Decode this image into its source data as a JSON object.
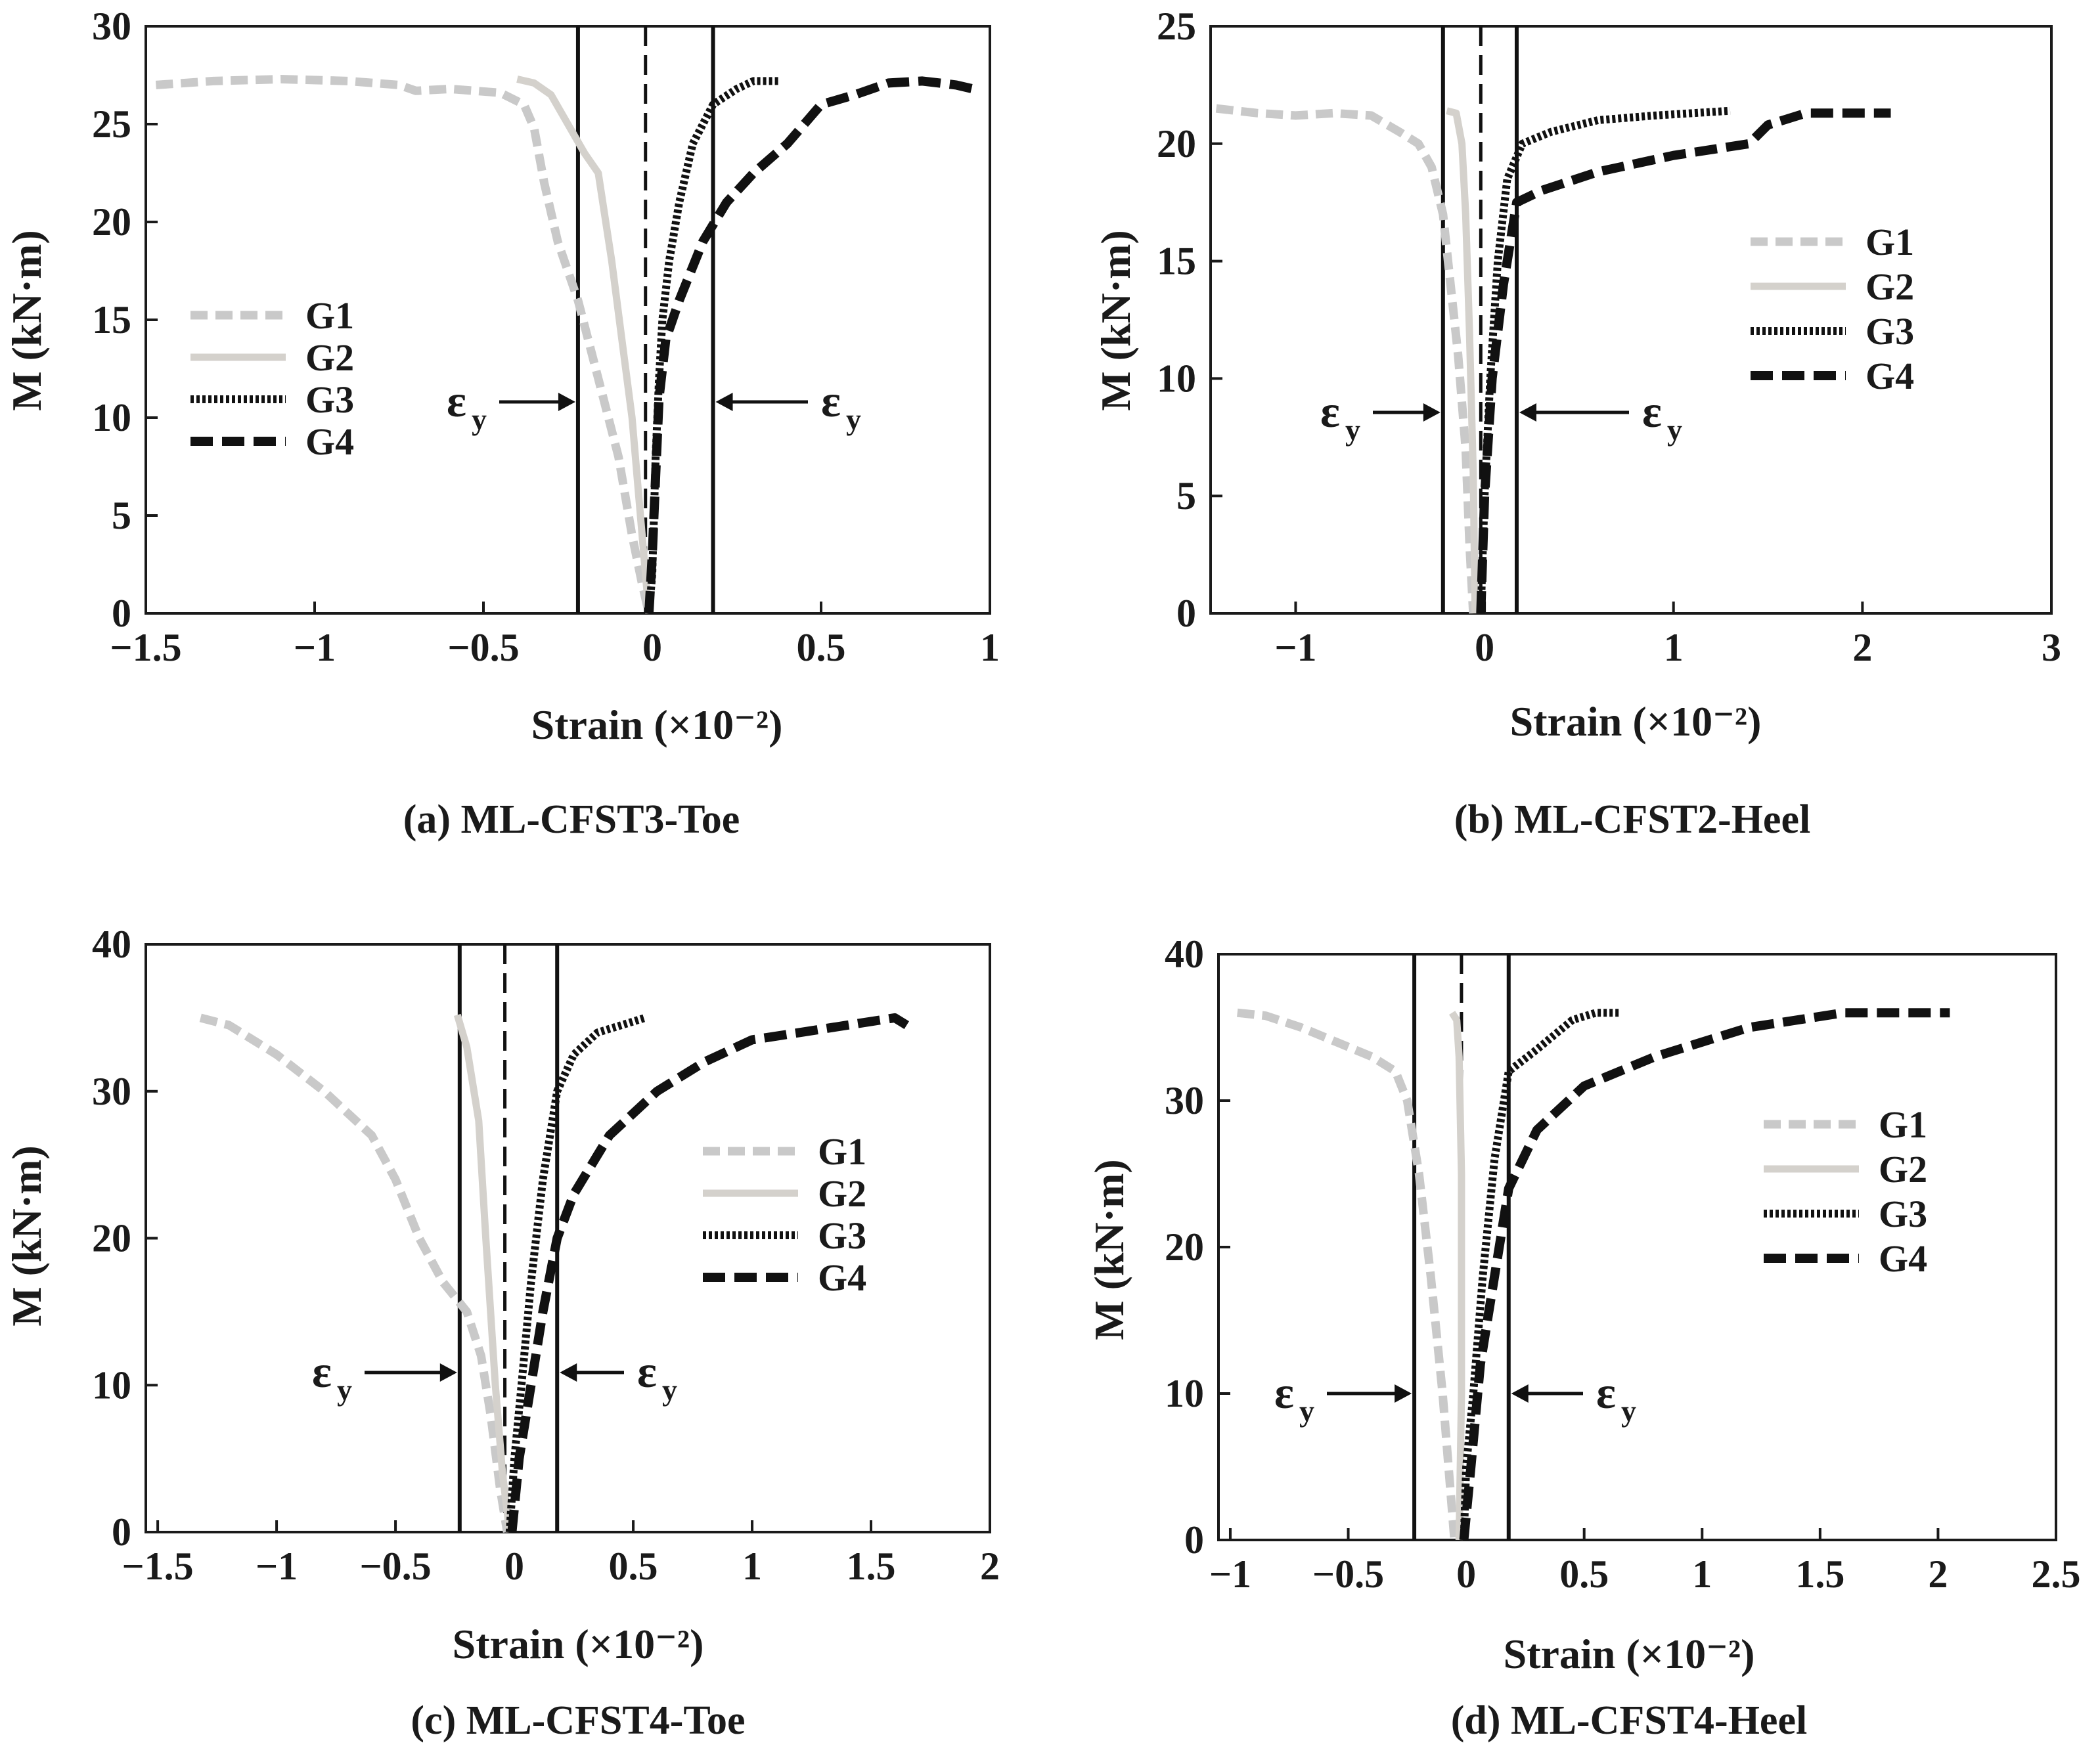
{
  "colors": {
    "G1": "#c9c9c9",
    "G2": "#d4d1cc",
    "G3": "#111111",
    "G4": "#111111",
    "axes": "#1a1a1a"
  },
  "chart_data": [
    {
      "type": "line",
      "caption": "(a) ML-CFST3-Toe",
      "xlabel": "Strain (×10⁻²)",
      "ylabel": "M (kN·m)",
      "xlim": [
        -1.5,
        1
      ],
      "ylim": [
        0,
        30
      ],
      "xticks": [
        "−1.5",
        "−1",
        "−0.5",
        "0",
        "0.5",
        "1"
      ],
      "yticks": [
        "0",
        "5",
        "10",
        "15",
        "20",
        "25",
        "30"
      ],
      "legend": {
        "position": "left",
        "entries": [
          "G1",
          "G2",
          "G3",
          "G4"
        ]
      },
      "yield_lines": {
        "solid": [
          -0.22,
          0.18
        ],
        "dashed": -0.02
      },
      "yield_label": "ε",
      "yield_sub": "y",
      "series": [
        {
          "name": "G1",
          "x": [
            -1.47,
            -1.3,
            -1.1,
            -0.9,
            -0.75,
            -0.7,
            -0.6,
            -0.45,
            -0.38,
            -0.35,
            -0.32,
            -0.28,
            -0.22,
            -0.16,
            -0.1,
            -0.06,
            -0.03,
            -0.01
          ],
          "y": [
            27,
            27.2,
            27.3,
            27.2,
            27,
            26.7,
            26.8,
            26.6,
            26,
            24.8,
            22,
            19,
            16,
            12,
            8,
            4,
            1.5,
            0
          ]
        },
        {
          "name": "G2",
          "x": [
            -0.4,
            -0.35,
            -0.3,
            -0.25,
            -0.2,
            -0.16,
            -0.12,
            -0.09,
            -0.06,
            -0.04,
            -0.02,
            -0.01
          ],
          "y": [
            27.3,
            27.1,
            26.5,
            25,
            23.5,
            22.5,
            18,
            14,
            10,
            6,
            2,
            0
          ]
        },
        {
          "name": "G3",
          "x": [
            -0.01,
            0,
            0.005,
            0.01,
            0.02,
            0.03,
            0.05,
            0.08,
            0.12,
            0.18,
            0.25,
            0.3,
            0.38
          ],
          "y": [
            0,
            2,
            5,
            8,
            12,
            15,
            18,
            21,
            24,
            26,
            26.8,
            27.2,
            27.2
          ]
        },
        {
          "name": "G4",
          "x": [
            -0.01,
            0,
            0.01,
            0.02,
            0.04,
            0.08,
            0.15,
            0.22,
            0.3,
            0.4,
            0.5,
            0.6,
            0.7,
            0.8,
            0.9,
            0.95
          ],
          "y": [
            0,
            3,
            7,
            11,
            14,
            16,
            19,
            21,
            22.5,
            24,
            26,
            26.5,
            27.1,
            27.2,
            27,
            26.8
          ]
        }
      ]
    },
    {
      "type": "line",
      "caption": "(b) ML-CFST2-Heel",
      "xlabel": "Strain (×10⁻²)",
      "ylabel": "M (kN·m)",
      "xlim": [
        -1.45,
        3
      ],
      "ylim": [
        0,
        25
      ],
      "xticks": [
        "−1",
        "0",
        "1",
        "2",
        "3"
      ],
      "yticks": [
        "0",
        "5",
        "10",
        "15",
        "20",
        "25"
      ],
      "legend": {
        "position": "right",
        "entries": [
          "G1",
          "G2",
          "G3",
          "G4"
        ]
      },
      "yield_lines": {
        "solid": [
          -0.22,
          0.17
        ],
        "dashed": -0.02
      },
      "yield_label": "ε",
      "yield_sub": "y",
      "series": [
        {
          "name": "G1",
          "x": [
            -1.42,
            -1.2,
            -1.0,
            -0.8,
            -0.6,
            -0.45,
            -0.35,
            -0.28,
            -0.22,
            -0.18,
            -0.14,
            -0.1,
            -0.08,
            -0.06
          ],
          "y": [
            21.5,
            21.3,
            21.2,
            21.3,
            21.2,
            20.5,
            20,
            19,
            17,
            14,
            11,
            7,
            3,
            0
          ]
        },
        {
          "name": "G2",
          "x": [
            -0.2,
            -0.15,
            -0.12,
            -0.1,
            -0.08,
            -0.06,
            -0.05
          ],
          "y": [
            21.4,
            21.3,
            20,
            17,
            12,
            6,
            0
          ]
        },
        {
          "name": "G3",
          "x": [
            -0.02,
            0,
            0.03,
            0.07,
            0.12,
            0.2,
            0.35,
            0.6,
            0.9,
            1.1,
            1.3
          ],
          "y": [
            0,
            5,
            10,
            15,
            18.5,
            20,
            20.5,
            21,
            21.2,
            21.3,
            21.4
          ]
        },
        {
          "name": "G4",
          "x": [
            -0.02,
            0,
            0.04,
            0.1,
            0.17,
            0.3,
            0.6,
            1.0,
            1.4,
            1.5,
            1.7,
            2.15
          ],
          "y": [
            0,
            5,
            10,
            14,
            17.5,
            18,
            18.8,
            19.5,
            20,
            20.8,
            21.3,
            21.3
          ]
        }
      ]
    },
    {
      "type": "line",
      "caption": "(c) ML-CFST4-Toe",
      "xlabel": "Strain (×10⁻²)",
      "ylabel": "M (kN·m)",
      "xlim": [
        -1.55,
        2
      ],
      "ylim": [
        0,
        40
      ],
      "xticks": [
        "−1.5",
        "−1",
        "−0.5",
        "0",
        "0.5",
        "1",
        "1.5",
        "2"
      ],
      "yticks": [
        "0",
        "10",
        "20",
        "30",
        "40"
      ],
      "legend": {
        "position": "right",
        "entries": [
          "G1",
          "G2",
          "G3",
          "G4"
        ]
      },
      "yield_lines": {
        "solid": [
          -0.23,
          0.18
        ],
        "dashed": -0.04
      },
      "yield_label": "ε",
      "yield_sub": "y",
      "series": [
        {
          "name": "G1",
          "x": [
            -1.32,
            -1.2,
            -1.0,
            -0.8,
            -0.6,
            -0.5,
            -0.4,
            -0.3,
            -0.2,
            -0.14,
            -0.1,
            -0.06,
            -0.03
          ],
          "y": [
            35,
            34.5,
            32.5,
            30,
            27,
            24,
            20,
            17,
            15,
            12,
            8,
            3,
            0
          ]
        },
        {
          "name": "G2",
          "x": [
            -0.24,
            -0.2,
            -0.15,
            -0.12,
            -0.08,
            -0.05,
            -0.02
          ],
          "y": [
            35.2,
            33,
            28,
            20,
            10,
            4,
            0
          ]
        },
        {
          "name": "G3",
          "x": [
            -0.02,
            0,
            0.03,
            0.07,
            0.12,
            0.18,
            0.25,
            0.35,
            0.45,
            0.55
          ],
          "y": [
            0,
            5,
            10,
            17,
            24,
            30,
            32.5,
            34,
            34.5,
            35
          ]
        },
        {
          "name": "G4",
          "x": [
            -0.01,
            0.02,
            0.07,
            0.12,
            0.18,
            0.25,
            0.4,
            0.6,
            0.8,
            1.0,
            1.2,
            1.4,
            1.6,
            1.65
          ],
          "y": [
            0,
            5,
            10,
            15,
            20,
            23,
            27,
            30,
            32,
            33.5,
            34,
            34.5,
            35,
            34.5
          ]
        }
      ]
    },
    {
      "type": "line",
      "caption": "(d) ML-CFST4-Heel",
      "xlabel": "Strain (×10⁻²)",
      "ylabel": "M (kN·m)",
      "xlim": [
        -1.05,
        2.5
      ],
      "ylim": [
        0,
        40
      ],
      "xticks": [
        "−1",
        "−0.5",
        "0",
        "0.5",
        "1",
        "1.5",
        "2",
        "2.5"
      ],
      "yticks": [
        "0",
        "10",
        "20",
        "30",
        "40"
      ],
      "legend": {
        "position": "right",
        "entries": [
          "G1",
          "G2",
          "G3",
          "G4"
        ]
      },
      "yield_lines": {
        "solid": [
          -0.22,
          0.18
        ],
        "dashed": -0.02
      },
      "yield_label": "ε",
      "yield_sub": "y",
      "series": [
        {
          "name": "G1",
          "x": [
            -0.97,
            -0.85,
            -0.7,
            -0.55,
            -0.4,
            -0.3,
            -0.25,
            -0.2,
            -0.15,
            -0.1,
            -0.07,
            -0.05
          ],
          "y": [
            36,
            35.8,
            35,
            34,
            33,
            32,
            30,
            25,
            18,
            10,
            4,
            0
          ]
        },
        {
          "name": "G2",
          "x": [
            -0.06,
            -0.04,
            -0.03,
            -0.02,
            -0.02,
            -0.03
          ],
          "y": [
            36,
            35.5,
            33,
            25,
            10,
            0
          ]
        },
        {
          "name": "G3",
          "x": [
            -0.01,
            0,
            0.03,
            0.07,
            0.12,
            0.18,
            0.3,
            0.45,
            0.55,
            0.65
          ],
          "y": [
            0,
            5,
            10,
            18,
            26,
            32,
            33.5,
            35.5,
            36,
            36
          ]
        },
        {
          "name": "G4",
          "x": [
            -0.01,
            0.02,
            0.06,
            0.12,
            0.18,
            0.3,
            0.5,
            0.8,
            1.2,
            1.6,
            1.8,
            2.05
          ],
          "y": [
            0,
            5,
            12,
            18,
            24,
            28,
            31,
            33,
            35,
            36,
            36,
            36
          ]
        }
      ]
    }
  ]
}
